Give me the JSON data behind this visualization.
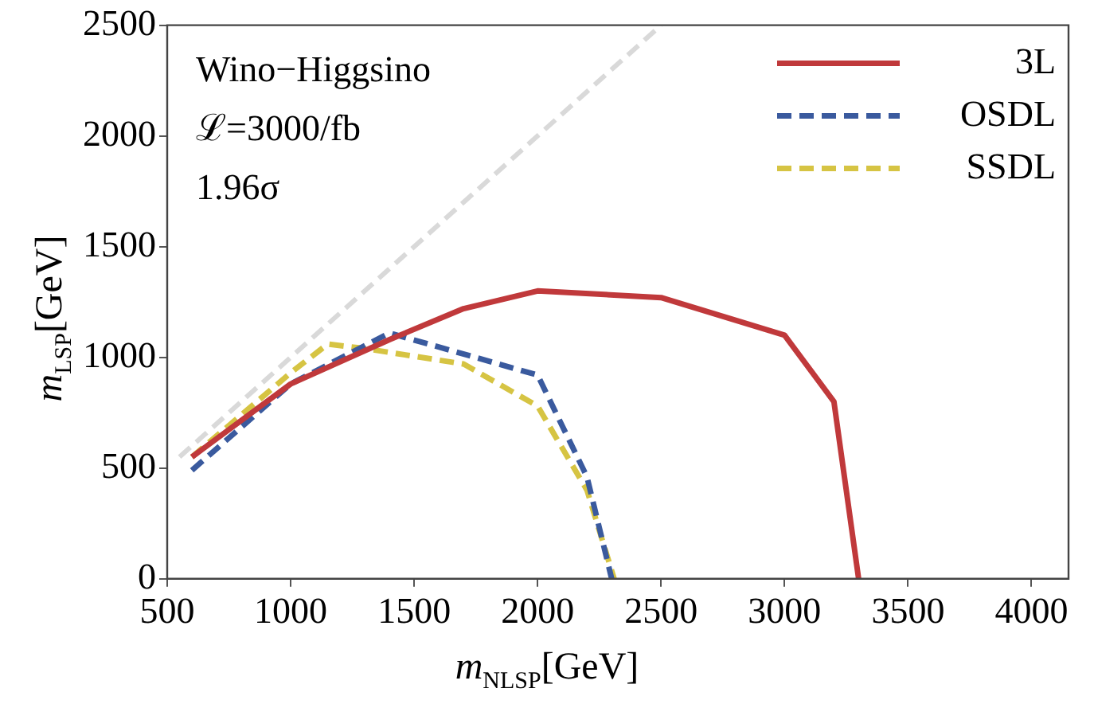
{
  "chart_data": {
    "type": "line",
    "xlabel": "m$_{NLSP}$[GeV]",
    "ylabel": "m$_{LSP}$[GeV]",
    "annotations": [
      "Wino−Higgsino",
      "ℒ=3000/fb",
      "1.96σ"
    ],
    "xlim": [
      500,
      4150
    ],
    "xticks": [
      500,
      1000,
      1500,
      2000,
      2500,
      3000,
      3500,
      4000
    ],
    "ylim": [
      0,
      2500
    ],
    "yticks": [
      0,
      500,
      1000,
      1500,
      2000,
      2500
    ],
    "grid": false,
    "legend": "top right",
    "marker": "none",
    "series": [
      {
        "color": "#d9d9d9",
        "line_style": "dashed",
        "x": [
          550,
          2500
        ],
        "values": [
          550,
          2500
        ]
      },
      {
        "name": "3L",
        "color": "#c0393b",
        "line_style": "solid",
        "x": [
          600,
          1000,
          1400,
          1700,
          2000,
          2500,
          3000,
          3200,
          3300
        ],
        "values": [
          550,
          880,
          1080,
          1220,
          1300,
          1270,
          1100,
          800,
          0
        ]
      },
      {
        "name": "OSDL",
        "color": "#3a5a9e",
        "line_style": "dashed",
        "x": [
          600,
          1000,
          1400,
          2000,
          2200,
          2300
        ],
        "values": [
          490,
          880,
          1110,
          920,
          460,
          0
        ]
      },
      {
        "name": "SSDL",
        "color": "#d6c443",
        "line_style": "dashed",
        "x": [
          600,
          1000,
          1150,
          1300,
          1700,
          2000,
          2200,
          2310
        ],
        "values": [
          550,
          930,
          1060,
          1040,
          970,
          780,
          400,
          0
        ]
      }
    ]
  }
}
